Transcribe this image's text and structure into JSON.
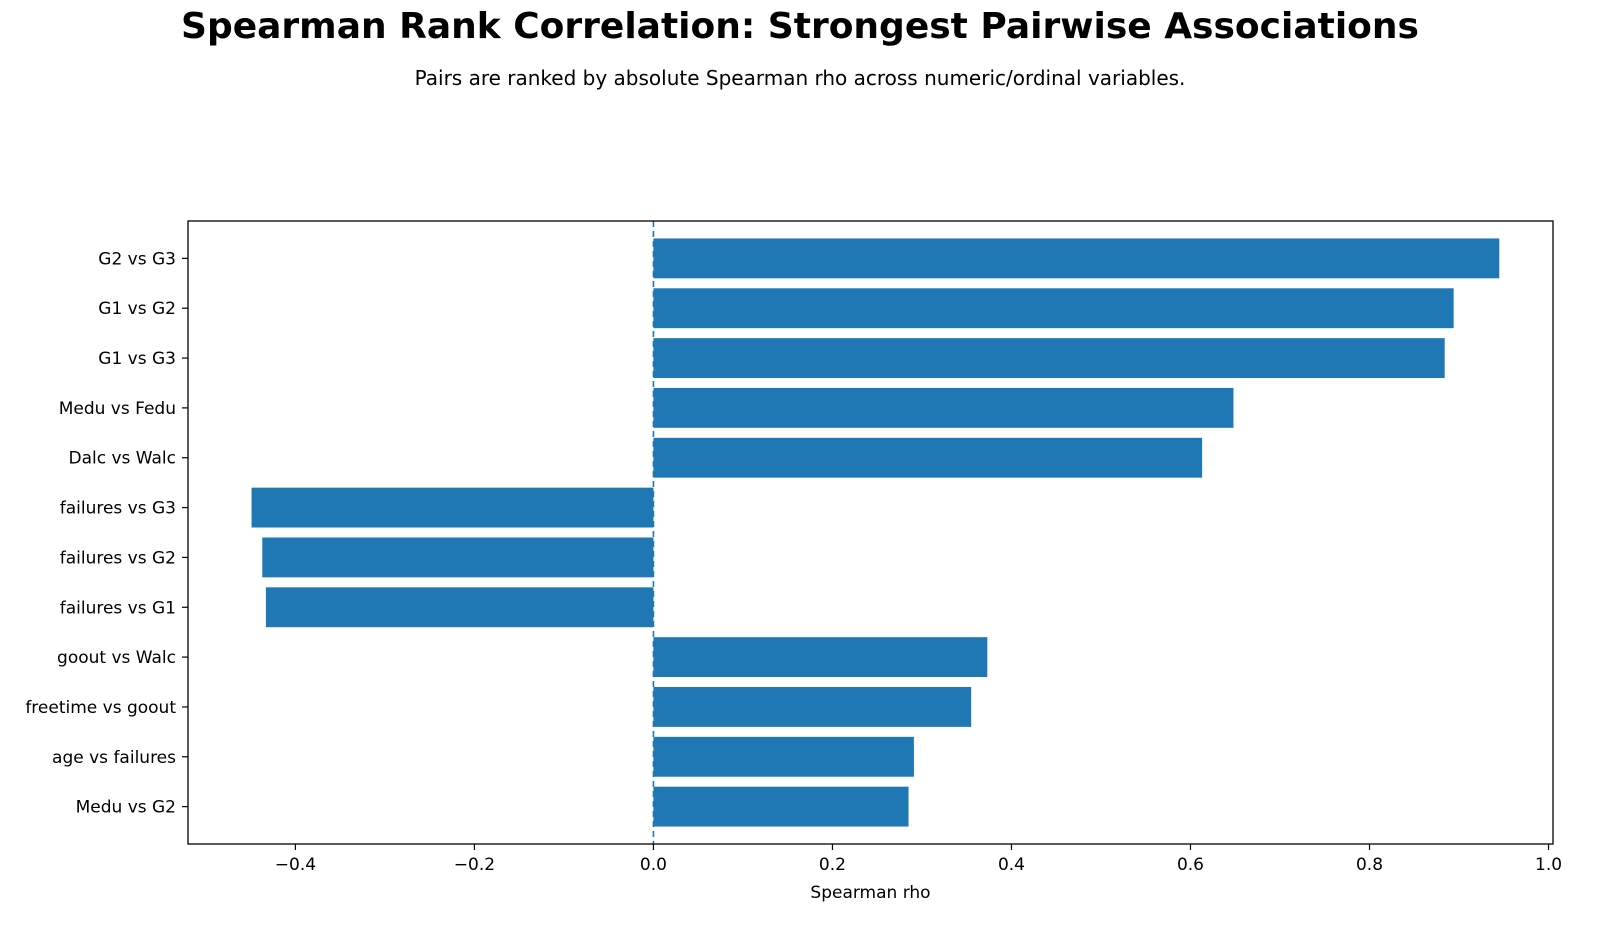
{
  "chart_data": {
    "type": "bar",
    "orientation": "horizontal",
    "title": "Spearman Rank Correlation: Strongest Pairwise Associations",
    "subtitle": "Pairs are ranked by absolute Spearman rho across numeric/ordinal variables.",
    "xlabel": "Spearman rho",
    "ylabel": "",
    "xlim": [
      -0.52,
      1.005
    ],
    "xticks": [
      -0.4,
      -0.2,
      0.0,
      0.2,
      0.4,
      0.6,
      0.8,
      1.0
    ],
    "xtick_labels": [
      "−0.4",
      "−0.2",
      "0.0",
      "0.2",
      "0.4",
      "0.6",
      "0.8",
      "1.0"
    ],
    "grid": false,
    "reference_line": {
      "x": 0,
      "style": "dashed"
    },
    "bar_color": "#1f77b4",
    "categories": [
      "G2 vs G3",
      "G1 vs G2",
      "G1 vs G3",
      "Medu vs Fedu",
      "Dalc vs Walc",
      "failures vs G3",
      "failures vs G2",
      "failures vs G1",
      "goout vs Walc",
      "freetime vs goout",
      "age vs failures",
      "Medu vs G2"
    ],
    "values": [
      0.945,
      0.894,
      0.884,
      0.648,
      0.613,
      -0.449,
      -0.437,
      -0.433,
      0.373,
      0.355,
      0.291,
      0.285
    ]
  }
}
